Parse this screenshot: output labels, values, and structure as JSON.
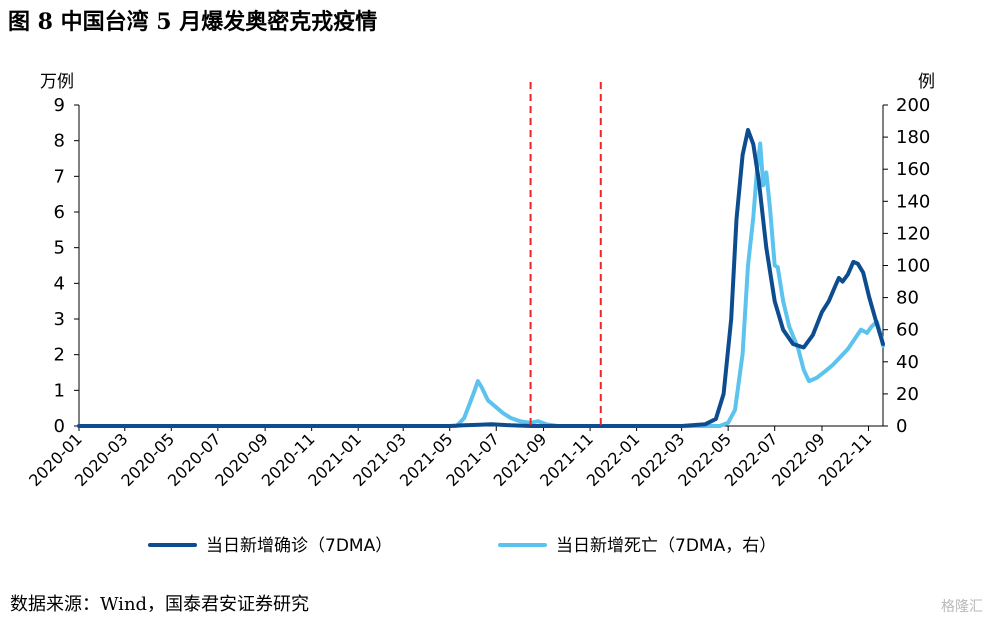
{
  "title": "图 8 中国台湾 5 月爆发奥密克戎疫情",
  "source": "数据来源：Wind，国泰君安证券研究",
  "watermark": "格隆汇",
  "colors": {
    "series_cases": "#0d4d8f",
    "series_deaths": "#5bc3ee",
    "marker_line": "#e8262b",
    "axis": "#000000"
  },
  "chart_data": {
    "type": "line",
    "left_axis": {
      "unit_label": "万例",
      "ylim": [
        0,
        9
      ],
      "ticks": [
        "0",
        "1",
        "2",
        "3",
        "4",
        "5",
        "6",
        "7",
        "8",
        "9"
      ]
    },
    "right_axis": {
      "unit_label": "例",
      "ylim": [
        0,
        200
      ],
      "ticks": [
        "0",
        "20",
        "40",
        "60",
        "80",
        "100",
        "120",
        "140",
        "160",
        "180",
        "200"
      ]
    },
    "x_range": [
      "2020-01-01",
      "2022-11-20"
    ],
    "x_ticks": [
      "2020-01",
      "2020-03",
      "2020-05",
      "2020-07",
      "2020-09",
      "2020-11",
      "2021-01",
      "2021-03",
      "2021-05",
      "2021-07",
      "2021-09",
      "2021-11",
      "2022-01",
      "2022-03",
      "2022-05",
      "2022-07",
      "2022-09",
      "2022-11"
    ],
    "markers": [
      "2021-08-15",
      "2021-11-15"
    ],
    "grid": false,
    "legend_position": "bottom",
    "series": [
      {
        "name": "当日新增确诊（7DMA）",
        "axis": "left",
        "points": [
          [
            "2020-01-01",
            0
          ],
          [
            "2021-05-01",
            0
          ],
          [
            "2021-05-20",
            0.02
          ],
          [
            "2021-06-05",
            0.03
          ],
          [
            "2021-06-25",
            0.05
          ],
          [
            "2021-07-20",
            0.02
          ],
          [
            "2021-08-15",
            0
          ],
          [
            "2022-03-01",
            0
          ],
          [
            "2022-04-01",
            0.05
          ],
          [
            "2022-04-15",
            0.2
          ],
          [
            "2022-04-25",
            0.9
          ],
          [
            "2022-05-05",
            3.0
          ],
          [
            "2022-05-12",
            5.8
          ],
          [
            "2022-05-20",
            7.6
          ],
          [
            "2022-05-27",
            8.3
          ],
          [
            "2022-06-03",
            7.9
          ],
          [
            "2022-06-10",
            6.9
          ],
          [
            "2022-06-20",
            5.0
          ],
          [
            "2022-07-01",
            3.5
          ],
          [
            "2022-07-12",
            2.7
          ],
          [
            "2022-07-25",
            2.3
          ],
          [
            "2022-08-08",
            2.2
          ],
          [
            "2022-08-20",
            2.55
          ],
          [
            "2022-09-01",
            3.2
          ],
          [
            "2022-09-10",
            3.5
          ],
          [
            "2022-09-18",
            3.9
          ],
          [
            "2022-09-23",
            4.15
          ],
          [
            "2022-09-28",
            4.05
          ],
          [
            "2022-10-05",
            4.25
          ],
          [
            "2022-10-12",
            4.6
          ],
          [
            "2022-10-18",
            4.55
          ],
          [
            "2022-10-25",
            4.3
          ],
          [
            "2022-11-02",
            3.6
          ],
          [
            "2022-11-10",
            3.0
          ],
          [
            "2022-11-20",
            2.3
          ]
        ]
      },
      {
        "name": "当日新增死亡（7DMA，右）",
        "axis": "right",
        "points": [
          [
            "2020-01-01",
            0
          ],
          [
            "2021-05-10",
            0
          ],
          [
            "2021-05-20",
            5
          ],
          [
            "2021-06-01",
            20
          ],
          [
            "2021-06-07",
            28
          ],
          [
            "2021-06-12",
            24
          ],
          [
            "2021-06-20",
            16
          ],
          [
            "2021-06-30",
            12
          ],
          [
            "2021-07-10",
            8
          ],
          [
            "2021-07-20",
            5
          ],
          [
            "2021-08-01",
            3
          ],
          [
            "2021-08-15",
            2
          ],
          [
            "2021-08-25",
            3
          ],
          [
            "2021-09-05",
            1
          ],
          [
            "2021-09-20",
            0
          ],
          [
            "2022-04-20",
            0
          ],
          [
            "2022-05-01",
            2
          ],
          [
            "2022-05-10",
            10
          ],
          [
            "2022-05-20",
            45
          ],
          [
            "2022-05-27",
            100
          ],
          [
            "2022-06-03",
            130
          ],
          [
            "2022-06-08",
            160
          ],
          [
            "2022-06-12",
            176
          ],
          [
            "2022-06-16",
            150
          ],
          [
            "2022-06-20",
            158
          ],
          [
            "2022-06-25",
            135
          ],
          [
            "2022-07-01",
            100
          ],
          [
            "2022-07-05",
            99
          ],
          [
            "2022-07-12",
            78
          ],
          [
            "2022-07-20",
            62
          ],
          [
            "2022-08-01",
            48
          ],
          [
            "2022-08-08",
            35
          ],
          [
            "2022-08-15",
            28
          ],
          [
            "2022-08-25",
            30
          ],
          [
            "2022-09-05",
            34
          ],
          [
            "2022-09-15",
            38
          ],
          [
            "2022-09-25",
            43
          ],
          [
            "2022-10-05",
            48
          ],
          [
            "2022-10-15",
            55
          ],
          [
            "2022-10-22",
            60
          ],
          [
            "2022-10-30",
            58
          ],
          [
            "2022-11-05",
            62
          ],
          [
            "2022-11-12",
            65
          ],
          [
            "2022-11-18",
            55
          ],
          [
            "2022-11-20",
            50
          ]
        ]
      }
    ]
  }
}
